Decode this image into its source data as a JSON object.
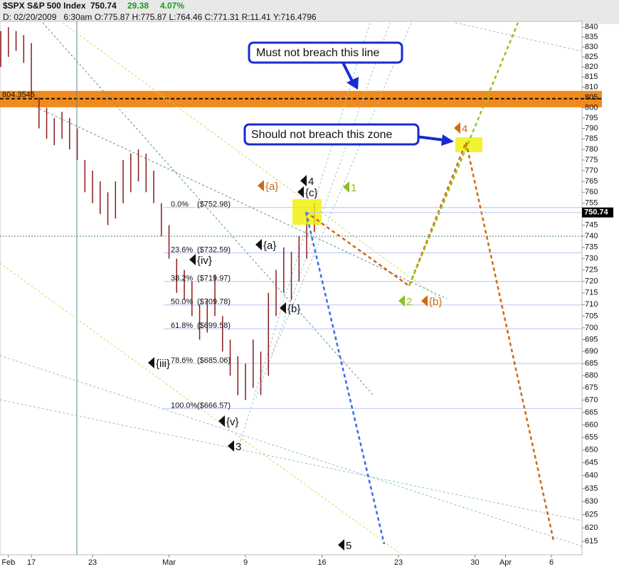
{
  "chart_data": {
    "type": "ohlc",
    "title": "$SPX S&P 500 Index",
    "header_last": "750.74",
    "header_change": "29.38",
    "header_pct": "4.07%",
    "header_info": "D: 02/20/2009   6:30am O:775.87 H:775.87 L:764.46 C:771.31 R:11.41 Y:716.4796",
    "log": true,
    "color": "#8b1a1a",
    "x": [
      -2,
      -1.5,
      -1,
      -0.5,
      0,
      0.5,
      1,
      1.5,
      2,
      2.5,
      3,
      3.5,
      4,
      4.5,
      5,
      5.5,
      6,
      6.5,
      7,
      7.5,
      8,
      8.5,
      9,
      9.5,
      10,
      10.5,
      11,
      11.5,
      12,
      12.5,
      13,
      13.5,
      14,
      14.5,
      15,
      15.5,
      16,
      16.5,
      17,
      17.5,
      18,
      18.5
    ],
    "high": [
      838,
      840,
      838,
      836,
      832,
      805,
      800,
      795,
      798,
      795,
      790,
      775,
      770,
      765,
      760,
      765,
      775,
      778,
      780,
      778,
      770,
      755,
      745,
      730,
      725,
      720,
      710,
      712,
      723,
      705,
      695,
      688,
      685,
      695,
      690,
      715,
      725,
      735,
      733,
      740,
      750,
      755
    ],
    "low": [
      820,
      825,
      828,
      822,
      805,
      790,
      785,
      782,
      785,
      780,
      775,
      760,
      755,
      750,
      745,
      748,
      755,
      760,
      765,
      760,
      755,
      740,
      730,
      715,
      712,
      705,
      695,
      698,
      705,
      690,
      680,
      672,
      670,
      675,
      672,
      680,
      705,
      715,
      712,
      720,
      730,
      742
    ],
    "last": 750.74,
    "ylim": [
      610,
      843
    ],
    "yticks": [
      615,
      620,
      625,
      630,
      635,
      640,
      645,
      650,
      655,
      660,
      665,
      670,
      675,
      680,
      685,
      690,
      695,
      700,
      705,
      710,
      715,
      720,
      725,
      730,
      735,
      740,
      745,
      750,
      755,
      760,
      765,
      770,
      775,
      780,
      785,
      790,
      795,
      800,
      805,
      810,
      815,
      820,
      825,
      830,
      835,
      840
    ],
    "xlim": [
      -2.05,
      36
    ],
    "xticks": [
      {
        "value": -1.5,
        "label": "Feb"
      },
      {
        "value": 0,
        "label": "17"
      },
      {
        "value": 4,
        "label": "23"
      },
      {
        "value": 9,
        "label": "Mar"
      },
      {
        "value": 14,
        "label": "9"
      },
      {
        "value": 19,
        "label": "16"
      },
      {
        "value": 24,
        "label": "23"
      },
      {
        "value": 29,
        "label": "30"
      },
      {
        "value": 31,
        "label": "Apr"
      },
      {
        "value": 34,
        "label": "6"
      }
    ],
    "resistance": {
      "value": 804.3545,
      "label": "804.3545"
    },
    "support_line": 740,
    "fib": [
      {
        "label": "0.0%",
        "value": 752.98,
        "value_label": "($752.98)"
      },
      {
        "label": "23.6%",
        "value": 732.59,
        "value_label": "($732.59)"
      },
      {
        "label": "38.2%",
        "value": 719.97,
        "value_label": "($719.97)"
      },
      {
        "label": "50.0%",
        "value": 709.78,
        "value_label": "($709.78)"
      },
      {
        "label": "61.8%",
        "value": 699.58,
        "value_label": "($699.58)"
      },
      {
        "label": "78.6%",
        "value": 685.06,
        "value_label": "($685.06)"
      },
      {
        "label": "100.0%",
        "value": 666.57,
        "value_label": "($666.57)"
      }
    ],
    "annotations": [
      "{a}",
      "4",
      "{c}",
      "1",
      "{a}",
      "{iv}",
      "{b}",
      "2",
      "{b}",
      "{iii}",
      "{v}",
      "3",
      "5",
      "4"
    ],
    "callouts": [
      "Must not breach this line",
      "Should not breach this zone"
    ]
  }
}
